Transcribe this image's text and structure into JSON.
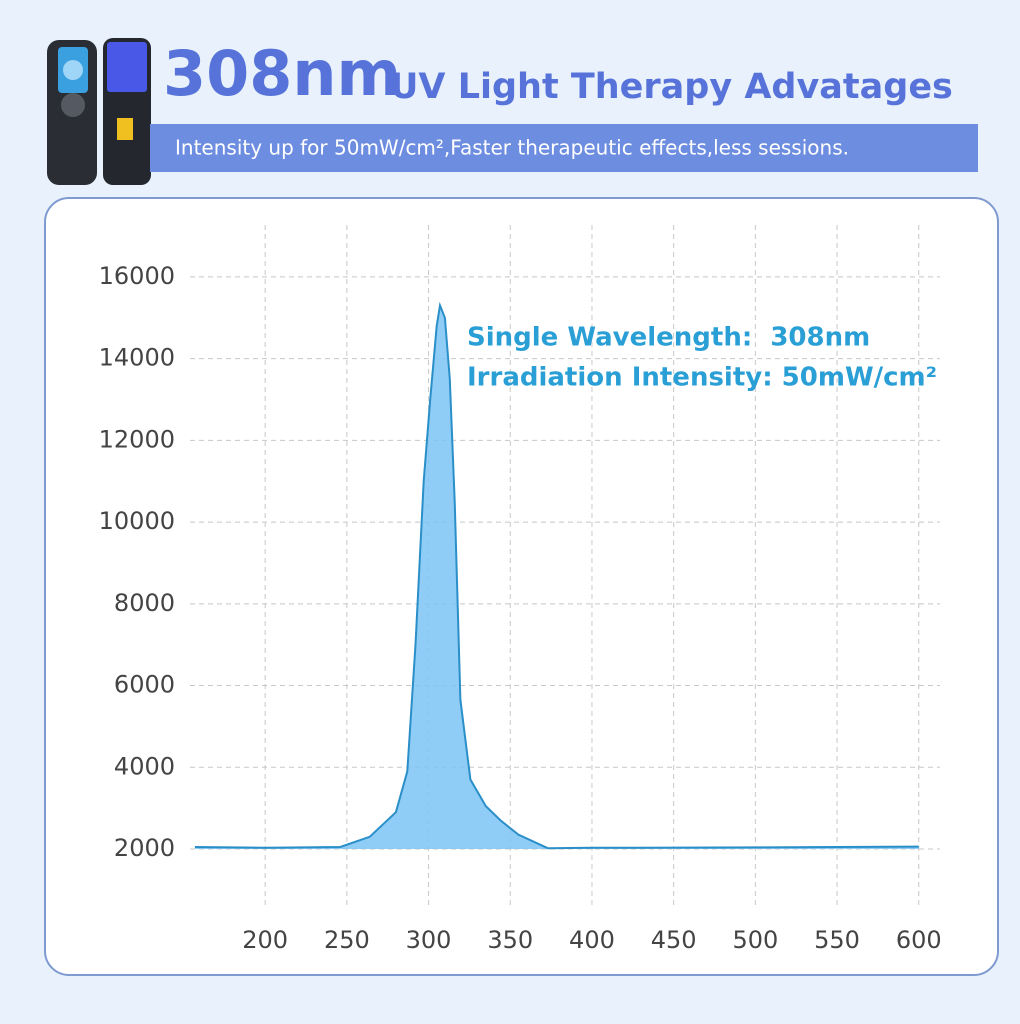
{
  "header": {
    "title_lead": "308nm",
    "title": "UV Light Therapy Advatages",
    "subtitle": "Intensity up for 50mW/cm²,Faster therapeutic effects,less sessions."
  },
  "chart_data": {
    "type": "area",
    "x": [
      157,
      200,
      246,
      264,
      280,
      287,
      292,
      297,
      301,
      305,
      307,
      310,
      313,
      316,
      319.5,
      325.6,
      335,
      344,
      355,
      373,
      400,
      500,
      600
    ],
    "values": [
      2050,
      2030,
      2050,
      2300,
      2900,
      3900,
      7000,
      11000,
      13000,
      14800,
      15300,
      15000,
      13500,
      10500,
      5650,
      3700,
      3050,
      2700,
      2350,
      2020,
      2030,
      2040,
      2060
    ],
    "color": "#2a8fc8",
    "fill": "#7cc4f4",
    "xlim": [
      154,
      613
    ],
    "ylim": [
      630,
      17270
    ],
    "xticks": [
      200,
      250,
      300,
      350,
      400,
      450,
      500,
      550,
      600
    ],
    "yticks": [
      2000,
      4000,
      6000,
      8000,
      10000,
      12000,
      14000,
      16000
    ],
    "grid": true,
    "annotations": [
      "Single Wavelength:  308nm",
      "Irradiation Intensity: 50mW/cm²"
    ]
  }
}
